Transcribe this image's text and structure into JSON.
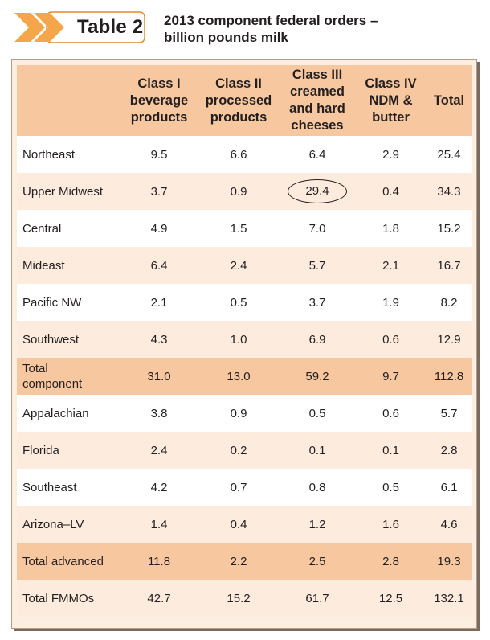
{
  "header": {
    "badge_label": "Table 2",
    "title_line1": "2013 component federal orders –",
    "title_line2": "billion pounds milk",
    "colors": {
      "badge_orange": "#f5a64b",
      "badge_border": "#e38a2c",
      "header_fill": "#f7c8a0",
      "row_peach": "#fdebdd"
    }
  },
  "table": {
    "columns": [
      {
        "line1": "",
        "line2": "",
        "line3": "",
        "line4": ""
      },
      {
        "line1": "Class I",
        "line2": "beverage",
        "line3": "products",
        "line4": ""
      },
      {
        "line1": "Class II",
        "line2": "processed",
        "line3": "products",
        "line4": ""
      },
      {
        "line1": "Class III",
        "line2": "creamed",
        "line3": "and hard",
        "line4": "cheeses"
      },
      {
        "line1": "Class IV",
        "line2": "NDM &",
        "line3": "butter",
        "line4": ""
      },
      {
        "line1": "Total",
        "line2": "",
        "line3": "",
        "line4": ""
      }
    ],
    "rows": [
      {
        "label": "Northeast",
        "values": [
          "9.5",
          "6.6",
          "6.4",
          "2.9",
          "25.4"
        ]
      },
      {
        "label": "Upper Midwest",
        "values": [
          "3.7",
          "0.9",
          "29.4",
          "0.4",
          "34.3"
        ]
      },
      {
        "label": "Central",
        "values": [
          "4.9",
          "1.5",
          "7.0",
          "1.8",
          "15.2"
        ]
      },
      {
        "label": "Mideast",
        "values": [
          "6.4",
          "2.4",
          "5.7",
          "2.1",
          "16.7"
        ]
      },
      {
        "label": "Pacific NW",
        "values": [
          "2.1",
          "0.5",
          "3.7",
          "1.9",
          "8.2"
        ]
      },
      {
        "label": "Southwest",
        "values": [
          "4.3",
          "1.0",
          "6.9",
          "0.6",
          "12.9"
        ]
      },
      {
        "label": "Total",
        "label2": "component",
        "values": [
          "31.0",
          "13.0",
          "59.2",
          "9.7",
          "112.8"
        ]
      },
      {
        "label": "Appalachian",
        "values": [
          "3.8",
          "0.9",
          "0.5",
          "0.6",
          "5.7"
        ]
      },
      {
        "label": "Florida",
        "values": [
          "2.4",
          "0.2",
          "0.1",
          "0.1",
          "2.8"
        ]
      },
      {
        "label": "Southeast",
        "values": [
          "4.2",
          "0.7",
          "0.8",
          "0.5",
          "6.1"
        ]
      },
      {
        "label": "Arizona–LV",
        "values": [
          "1.4",
          "0.4",
          "1.2",
          "1.6",
          "4.6"
        ]
      },
      {
        "label": "Total advanced",
        "values": [
          "11.8",
          "2.2",
          "2.5",
          "2.8",
          "19.3"
        ]
      },
      {
        "label": "Total FMMOs",
        "values": [
          "42.7",
          "15.2",
          "61.7",
          "12.5",
          "132.1"
        ]
      }
    ]
  }
}
